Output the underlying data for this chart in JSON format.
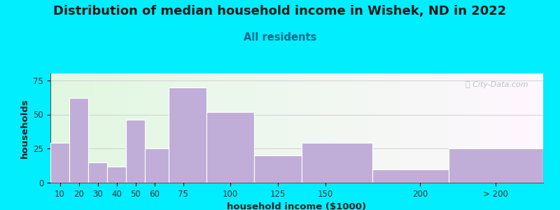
{
  "title": "Distribution of median household income in Wishek, ND in 2022",
  "subtitle": "All residents",
  "xlabel": "household income ($1000)",
  "ylabel": "households",
  "bar_labels": [
    "10",
    "20",
    "30",
    "40",
    "50",
    "60",
    "75",
    "100",
    "125",
    "150",
    "200",
    "> 200"
  ],
  "bar_heights": [
    29,
    62,
    15,
    12,
    46,
    25,
    70,
    52,
    20,
    29,
    10,
    25
  ],
  "bar_left_edges": [
    5,
    15,
    25,
    35,
    45,
    55,
    67.5,
    87.5,
    112.5,
    137.5,
    175,
    215
  ],
  "bar_widths": [
    10,
    10,
    10,
    10,
    10,
    12.5,
    20,
    25,
    25,
    37.5,
    40,
    50
  ],
  "bar_color": "#c0aed8",
  "bar_edge_color": "#ffffff",
  "ylim": [
    0,
    80
  ],
  "yticks": [
    0,
    25,
    50,
    75
  ],
  "xlim": [
    5,
    265
  ],
  "xtick_positions": [
    10,
    20,
    30,
    40,
    50,
    60,
    75,
    100,
    125,
    150,
    200,
    240
  ],
  "xtick_labels": [
    "10",
    "20",
    "30",
    "40",
    "50",
    "60",
    "75",
    "100",
    "125",
    "150",
    "200",
    "> 200"
  ],
  "background_outer": "#00eeff",
  "grid_color": "#d0d0d0",
  "title_fontsize": 13,
  "subtitle_fontsize": 10.5,
  "subtitle_color": "#006688",
  "axis_label_fontsize": 9.5,
  "tick_fontsize": 8.5,
  "watermark_text": "ⓘ City-Data.com"
}
